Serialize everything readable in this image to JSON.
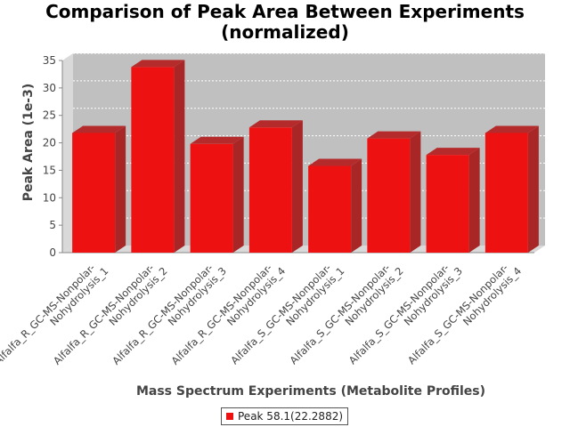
{
  "chart_data": {
    "type": "bar",
    "title_lines": [
      "Comparison of Peak Area Between Experiments",
      "(normalized)"
    ],
    "xlabel": "Mass Spectrum Experiments (Metabolite Profiles)",
    "ylabel": "Peak Area (1e-3)",
    "ylim": [
      0,
      35
    ],
    "yticks": [
      0,
      5,
      10,
      15,
      20,
      25,
      30,
      35
    ],
    "grid": true,
    "legend_position": "bottom",
    "categories": [
      [
        "Alfalfa_R_GC-MS-Nonpolar-",
        "Nohydrolysis_1"
      ],
      [
        "Alfalfa_R_GC-MS-Nonpolar-",
        "Nohydrolysis_2"
      ],
      [
        "Alfalfa_R_GC-MS-Nonpolar-",
        "Nohydrolysis_3"
      ],
      [
        "Alfalfa_R_GC-MS-Nonpolar-",
        "Nohydrolysis_4"
      ],
      [
        "Alfalfa_S_GC-MS-Nonpolar-",
        "Nohydrolysis_1"
      ],
      [
        "Alfalfa_S_GC-MS-Nonpolar-",
        "Nohydrolysis_2"
      ],
      [
        "Alfalfa_S_GC-MS-Nonpolar-",
        "Nohydrolysis_3"
      ],
      [
        "Alfalfa_S_GC-MS-Nonpolar-",
        "Nohydrolysis_4"
      ]
    ],
    "series": [
      {
        "name": "Peak 58.1(22.2882)",
        "color": "#ee1111",
        "values": [
          21.8,
          33.8,
          19.8,
          22.8,
          15.8,
          20.8,
          17.8,
          21.8
        ]
      }
    ]
  }
}
